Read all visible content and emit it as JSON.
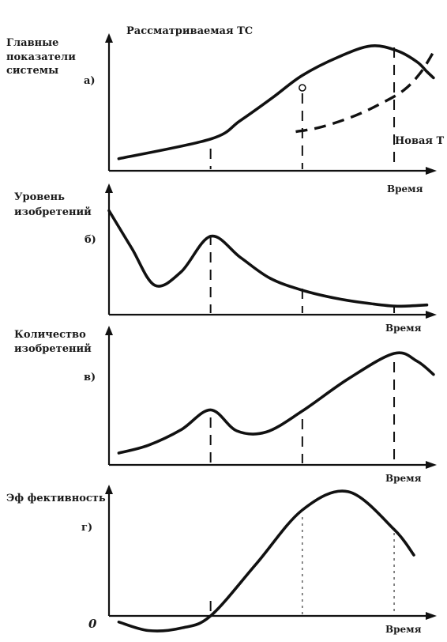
{
  "title": "Рассматриваемая ТС",
  "new_system_label": "Новая Т",
  "origin_label": "0",
  "chart_data": [
    {
      "type": "line",
      "panel_label": "а)",
      "ylabel": "Главные показатели системы",
      "xlabel": "Время",
      "markers": [
        0.31,
        0.59,
        0.87
      ],
      "series": [
        {
          "values": [
            [
              0.03,
              0.06
            ],
            [
              0.31,
              0.22
            ],
            [
              0.4,
              0.37
            ],
            [
              0.5,
              0.56
            ],
            [
              0.59,
              0.74
            ],
            [
              0.7,
              0.89
            ],
            [
              0.8,
              0.98
            ],
            [
              0.88,
              0.94
            ],
            [
              0.94,
              0.85
            ],
            [
              0.97,
              0.77
            ],
            [
              0.99,
              0.72
            ]
          ]
        }
      ],
      "new_system_series": {
        "values": [
          [
            0.57,
            0.28
          ],
          [
            0.65,
            0.32
          ],
          [
            0.75,
            0.41
          ],
          [
            0.83,
            0.51
          ],
          [
            0.9,
            0.62
          ],
          [
            0.95,
            0.76
          ],
          [
            0.99,
            0.93
          ]
        ]
      },
      "point_marker_x": 0.59
    },
    {
      "type": "line",
      "panel_label": "б)",
      "ylabel": "Уровень изобретений",
      "xlabel": "Время",
      "markers": [
        0.31,
        0.59,
        0.87
      ],
      "series": [
        {
          "values": [
            [
              0.0,
              0.83
            ],
            [
              0.07,
              0.52
            ],
            [
              0.14,
              0.22
            ],
            [
              0.22,
              0.33
            ],
            [
              0.31,
              0.62
            ],
            [
              0.4,
              0.45
            ],
            [
              0.49,
              0.28
            ],
            [
              0.59,
              0.18
            ],
            [
              0.7,
              0.11
            ],
            [
              0.8,
              0.07
            ],
            [
              0.88,
              0.05
            ],
            [
              0.97,
              0.06
            ]
          ]
        }
      ]
    },
    {
      "type": "line",
      "panel_label": "в)",
      "ylabel": "Количество изобретений",
      "xlabel": "Время",
      "markers": [
        0.31,
        0.59,
        0.87
      ],
      "series": [
        {
          "values": [
            [
              0.03,
              0.05
            ],
            [
              0.12,
              0.12
            ],
            [
              0.22,
              0.26
            ],
            [
              0.31,
              0.44
            ],
            [
              0.39,
              0.25
            ],
            [
              0.48,
              0.24
            ],
            [
              0.59,
              0.43
            ],
            [
              0.73,
              0.72
            ],
            [
              0.87,
              0.95
            ],
            [
              0.94,
              0.88
            ],
            [
              0.99,
              0.76
            ]
          ]
        }
      ]
    },
    {
      "type": "line",
      "panel_label": "г)",
      "ylabel": "Эф фективность",
      "xlabel": "Время",
      "markers": [
        0.31,
        0.59,
        0.87
      ],
      "series": [
        {
          "values": [
            [
              0.03,
              -0.05
            ],
            [
              0.12,
              -0.12
            ],
            [
              0.22,
              -0.1
            ],
            [
              0.31,
              0.0
            ],
            [
              0.45,
              0.43
            ],
            [
              0.59,
              0.87
            ],
            [
              0.73,
              1.02
            ],
            [
              0.87,
              0.71
            ],
            [
              0.93,
              0.5
            ]
          ]
        }
      ]
    }
  ]
}
